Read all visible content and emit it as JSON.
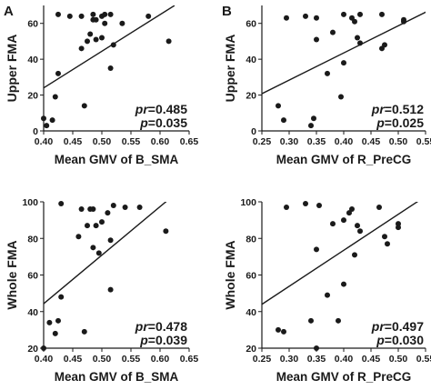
{
  "chart_data": [
    {
      "type": "scatter",
      "panel_label": "A",
      "xlabel": "Mean GMV of B_SMA",
      "ylabel": "Upper FMA",
      "xlim": [
        0.4,
        0.65
      ],
      "ylim": [
        0,
        70
      ],
      "xticks": [
        "0.40",
        "0.45",
        "0.50",
        "0.55",
        "0.60",
        "0.65"
      ],
      "yticks": [
        "0",
        "20",
        "40",
        "60"
      ],
      "pr_label": "pr",
      "pr_value": "=0.485",
      "p_label": "p",
      "p_value": "=0.035",
      "fit_line": [
        [
          0.395,
          23
        ],
        [
          0.625,
          70
        ]
      ],
      "points": [
        [
          0.4,
          7
        ],
        [
          0.405,
          3
        ],
        [
          0.415,
          6
        ],
        [
          0.42,
          19
        ],
        [
          0.425,
          32
        ],
        [
          0.425,
          65
        ],
        [
          0.445,
          64
        ],
        [
          0.465,
          46
        ],
        [
          0.465,
          64
        ],
        [
          0.47,
          14
        ],
        [
          0.475,
          50
        ],
        [
          0.48,
          54
        ],
        [
          0.485,
          62
        ],
        [
          0.485,
          65
        ],
        [
          0.49,
          51
        ],
        [
          0.49,
          62
        ],
        [
          0.5,
          52
        ],
        [
          0.5,
          64
        ],
        [
          0.505,
          65
        ],
        [
          0.505,
          60
        ],
        [
          0.515,
          35
        ],
        [
          0.515,
          65
        ],
        [
          0.52,
          48
        ],
        [
          0.535,
          60
        ],
        [
          0.58,
          64
        ],
        [
          0.615,
          50
        ]
      ]
    },
    {
      "type": "scatter",
      "panel_label": "B",
      "xlabel": "Mean GMV of R_PreCG",
      "ylabel": "Upper FMA",
      "xlim": [
        0.25,
        0.55
      ],
      "ylim": [
        0,
        70
      ],
      "xticks": [
        "0.25",
        "0.30",
        "0.35",
        "0.40",
        "0.45",
        "0.50",
        "0.55"
      ],
      "yticks": [
        "0",
        "20",
        "40",
        "60"
      ],
      "pr_label": "pr",
      "pr_value": "=0.512",
      "p_label": "p",
      "p_value": "=0.025",
      "fit_line": [
        [
          0.245,
          20
        ],
        [
          0.555,
          67
        ]
      ],
      "points": [
        [
          0.28,
          14
        ],
        [
          0.29,
          6
        ],
        [
          0.295,
          63
        ],
        [
          0.33,
          64
        ],
        [
          0.34,
          3
        ],
        [
          0.345,
          7
        ],
        [
          0.35,
          51
        ],
        [
          0.35,
          63
        ],
        [
          0.37,
          32
        ],
        [
          0.38,
          55
        ],
        [
          0.395,
          19
        ],
        [
          0.4,
          38
        ],
        [
          0.4,
          65
        ],
        [
          0.415,
          63
        ],
        [
          0.42,
          61
        ],
        [
          0.425,
          52
        ],
        [
          0.43,
          49
        ],
        [
          0.43,
          65
        ],
        [
          0.47,
          46
        ],
        [
          0.47,
          65
        ],
        [
          0.475,
          48
        ],
        [
          0.51,
          61
        ],
        [
          0.51,
          62
        ]
      ]
    },
    {
      "type": "scatter",
      "panel_label": "",
      "xlabel": "Mean GMV of B_SMA",
      "ylabel": "Whole FMA",
      "xlim": [
        0.4,
        0.65
      ],
      "ylim": [
        20,
        100
      ],
      "xticks": [
        "0.40",
        "0.45",
        "0.50",
        "0.55",
        "0.60",
        "0.65"
      ],
      "yticks": [
        "20",
        "40",
        "60",
        "80",
        "100"
      ],
      "pr_label": "pr",
      "pr_value": "=0.478",
      "p_label": "p",
      "p_value": "=0.039",
      "fit_line": [
        [
          0.395,
          43
        ],
        [
          0.625,
          104
        ]
      ],
      "points": [
        [
          0.4,
          20
        ],
        [
          0.41,
          34
        ],
        [
          0.42,
          28
        ],
        [
          0.425,
          35
        ],
        [
          0.43,
          48
        ],
        [
          0.43,
          99
        ],
        [
          0.46,
          81
        ],
        [
          0.465,
          96
        ],
        [
          0.47,
          29
        ],
        [
          0.475,
          87
        ],
        [
          0.48,
          96
        ],
        [
          0.485,
          75
        ],
        [
          0.485,
          96
        ],
        [
          0.49,
          87
        ],
        [
          0.495,
          72
        ],
        [
          0.5,
          89
        ],
        [
          0.51,
          94
        ],
        [
          0.515,
          79
        ],
        [
          0.515,
          52
        ],
        [
          0.52,
          98
        ],
        [
          0.54,
          97
        ],
        [
          0.565,
          97
        ],
        [
          0.61,
          84
        ]
      ]
    },
    {
      "type": "scatter",
      "panel_label": "",
      "xlabel": "Mean  GMV of R_PreCG",
      "ylabel": "Whole FMA",
      "xlim": [
        0.25,
        0.55
      ],
      "ylim": [
        20,
        100
      ],
      "xticks": [
        "0.25",
        "0.30",
        "0.35",
        "0.40",
        "0.45",
        "0.50",
        "0.55"
      ],
      "yticks": [
        "20",
        "40",
        "60",
        "80",
        "100"
      ],
      "pr_label": "pr",
      "pr_value": "=0.497",
      "p_label": "p",
      "p_value": "=0.030",
      "fit_line": [
        [
          0.245,
          43
        ],
        [
          0.555,
          104
        ]
      ],
      "points": [
        [
          0.28,
          30
        ],
        [
          0.29,
          29
        ],
        [
          0.295,
          97
        ],
        [
          0.33,
          99
        ],
        [
          0.34,
          35
        ],
        [
          0.35,
          20
        ],
        [
          0.35,
          74
        ],
        [
          0.355,
          98
        ],
        [
          0.37,
          49
        ],
        [
          0.38,
          88
        ],
        [
          0.39,
          35
        ],
        [
          0.4,
          55
        ],
        [
          0.4,
          90
        ],
        [
          0.41,
          94
        ],
        [
          0.415,
          96
        ],
        [
          0.42,
          71
        ],
        [
          0.425,
          87
        ],
        [
          0.43,
          84
        ],
        [
          0.465,
          97
        ],
        [
          0.475,
          81
        ],
        [
          0.48,
          77
        ],
        [
          0.5,
          88
        ],
        [
          0.5,
          86
        ]
      ]
    }
  ]
}
